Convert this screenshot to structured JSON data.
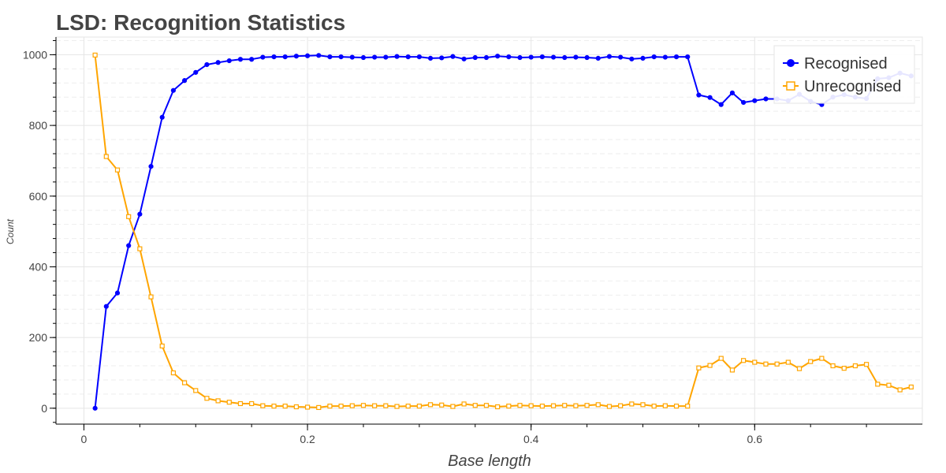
{
  "chart_data": {
    "type": "line",
    "title": "LSD: Recognition Statistics",
    "xlabel": "Base length",
    "ylabel": "Count",
    "xlim": [
      -0.025,
      0.75
    ],
    "ylim": [
      -45,
      1050
    ],
    "x_ticks": [
      0,
      0.2,
      0.4,
      0.6
    ],
    "x_tick_labels": [
      "0",
      "0.2",
      "0.4",
      "0.6"
    ],
    "y_ticks": [
      0,
      200,
      400,
      600,
      800,
      1000
    ],
    "y_tick_labels": [
      "0",
      "200",
      "400",
      "600",
      "800",
      "1000"
    ],
    "grid": true,
    "legend_position": "top-right",
    "x": [
      0.01,
      0.02,
      0.03,
      0.04,
      0.05,
      0.06,
      0.07,
      0.08,
      0.09,
      0.1,
      0.11,
      0.12,
      0.13,
      0.14,
      0.15,
      0.16,
      0.17,
      0.18,
      0.19,
      0.2,
      0.21,
      0.22,
      0.23,
      0.24,
      0.25,
      0.26,
      0.27,
      0.28,
      0.29,
      0.3,
      0.31,
      0.32,
      0.33,
      0.34,
      0.35,
      0.36,
      0.37,
      0.38,
      0.39,
      0.4,
      0.41,
      0.42,
      0.43,
      0.44,
      0.45,
      0.46,
      0.47,
      0.48,
      0.49,
      0.5,
      0.51,
      0.52,
      0.53,
      0.54,
      0.55,
      0.56,
      0.57,
      0.58,
      0.59,
      0.6,
      0.61,
      0.62,
      0.63,
      0.64,
      0.65,
      0.66,
      0.67,
      0.68,
      0.69,
      0.7,
      0.71,
      0.72,
      0.73,
      0.74
    ],
    "series": [
      {
        "name": "Recognised",
        "color": "#0000ff",
        "marker": "circle",
        "values": [
          0,
          288,
          326,
          460,
          549,
          684,
          823,
          899,
          927,
          950,
          972,
          978,
          983,
          987,
          987,
          993,
          994,
          994,
          996,
          997,
          998,
          994,
          994,
          993,
          992,
          993,
          993,
          995,
          994,
          994,
          990,
          991,
          995,
          988,
          992,
          992,
          996,
          994,
          992,
          993,
          994,
          993,
          992,
          993,
          992,
          990,
          995,
          993,
          988,
          990,
          994,
          993,
          994,
          994,
          886,
          879,
          859,
          892,
          865,
          870,
          875,
          875,
          870,
          888,
          868,
          859,
          880,
          887,
          880,
          876,
          932,
          935,
          948,
          940
        ]
      },
      {
        "name": "Unrecognised",
        "color": "#ffa500",
        "marker": "square",
        "values": [
          999,
          712,
          674,
          542,
          451,
          315,
          176,
          100,
          72,
          50,
          28,
          21,
          17,
          13,
          13,
          7,
          6,
          6,
          4,
          3,
          2,
          6,
          6,
          7,
          8,
          7,
          7,
          5,
          6,
          6,
          10,
          9,
          5,
          12,
          8,
          8,
          4,
          6,
          8,
          7,
          6,
          7,
          8,
          7,
          8,
          10,
          5,
          7,
          12,
          10,
          6,
          7,
          6,
          6,
          114,
          121,
          141,
          108,
          135,
          130,
          125,
          125,
          130,
          112,
          132,
          141,
          120,
          113,
          120,
          124,
          68,
          65,
          52,
          60
        ]
      }
    ]
  }
}
